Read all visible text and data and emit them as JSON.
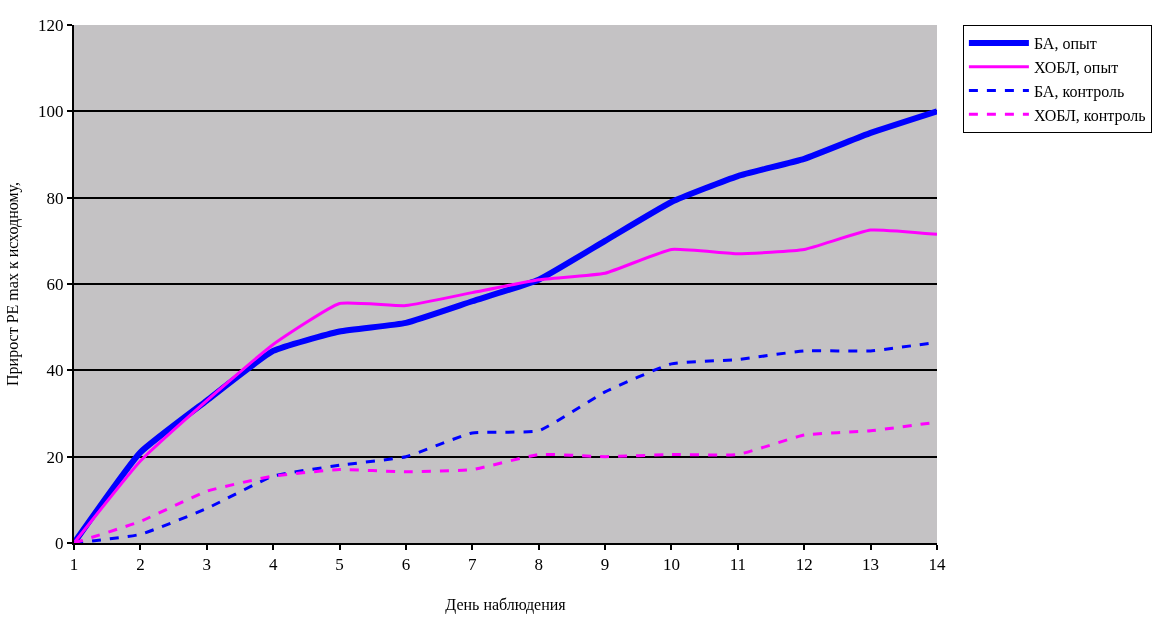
{
  "chart_data": {
    "type": "line",
    "xlabel": "День наблюдения",
    "ylabel": "Прирост PE max к исходному,",
    "x": [
      1,
      2,
      3,
      4,
      5,
      6,
      7,
      8,
      9,
      10,
      11,
      12,
      13,
      14
    ],
    "xlim": [
      1,
      14
    ],
    "xticks": [
      1,
      2,
      3,
      4,
      5,
      6,
      7,
      8,
      9,
      10,
      11,
      12,
      13,
      14
    ],
    "ylim": [
      0,
      120
    ],
    "yticks": [
      0,
      20,
      40,
      60,
      80,
      100,
      120
    ],
    "grid": "y",
    "legend": "right",
    "marker": "none",
    "series": [
      {
        "name": "БА, опыт",
        "color": "#0000ff",
        "line_style": "solid",
        "values": [
          0,
          21,
          33,
          44.5,
          49,
          51,
          56,
          61,
          70,
          79,
          85,
          89,
          95,
          100
        ]
      },
      {
        "name": "ХОБЛ, опыт",
        "color": "#ff00ff",
        "line_style": "solid",
        "values": [
          0,
          19,
          33,
          46,
          55.5,
          55,
          58,
          61,
          62.5,
          68,
          67,
          68,
          72.5,
          71.5
        ]
      },
      {
        "name": "БА, контроль",
        "color": "#0000ff",
        "line_style": "dashed",
        "values": [
          0,
          2,
          8,
          15.5,
          18,
          20,
          25.5,
          26,
          35,
          41.5,
          42.5,
          44.5,
          44.5,
          46.5
        ]
      },
      {
        "name": "ХОБЛ, контроль",
        "color": "#ff00ff",
        "line_style": "dashed",
        "values": [
          0,
          5,
          12,
          15.5,
          17,
          16.5,
          17,
          20.5,
          20,
          20.5,
          20.5,
          25,
          26,
          28
        ]
      }
    ]
  }
}
